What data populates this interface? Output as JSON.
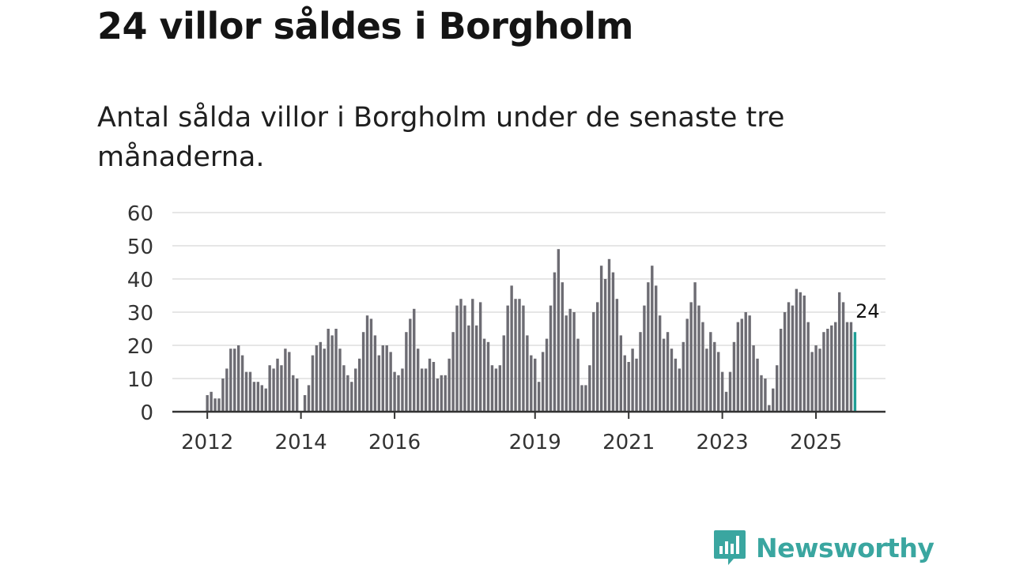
{
  "title": "24 villor såldes i Borgholm",
  "subtitle": "Antal sålda villor i Borgholm under de senaste tre månaderna.",
  "brand": {
    "name": "Newsworthy",
    "icon": "newsworthy-logo-icon",
    "color": "#3aa6a0"
  },
  "chart_data": {
    "type": "bar",
    "title": "Antal sålda villor i Borgholm under de senaste tre månaderna.",
    "xlabel": "",
    "ylabel": "",
    "ylim": [
      0,
      60
    ],
    "yticks": [
      0,
      10,
      20,
      30,
      40,
      50,
      60
    ],
    "grid": true,
    "start": {
      "year": 2012,
      "month": 1
    },
    "x_tick_labels": [
      "2012",
      "2014",
      "2016",
      "2019",
      "2021",
      "2023",
      "2025"
    ],
    "values": [
      5,
      6,
      4,
      4,
      10,
      13,
      19,
      19,
      20,
      17,
      12,
      12,
      9,
      9,
      8,
      7,
      14,
      13,
      16,
      14,
      19,
      18,
      11,
      10,
      0,
      5,
      8,
      17,
      20,
      21,
      19,
      25,
      23,
      25,
      19,
      14,
      11,
      9,
      13,
      16,
      24,
      29,
      28,
      23,
      17,
      20,
      20,
      18,
      12,
      11,
      13,
      24,
      28,
      31,
      19,
      13,
      13,
      16,
      15,
      10,
      11,
      11,
      16,
      24,
      32,
      34,
      32,
      26,
      34,
      26,
      33,
      22,
      21,
      14,
      13,
      14,
      23,
      32,
      38,
      34,
      34,
      32,
      23,
      17,
      16,
      9,
      18,
      22,
      32,
      42,
      49,
      39,
      29,
      31,
      30,
      22,
      8,
      8,
      14,
      30,
      33,
      44,
      40,
      46,
      42,
      34,
      23,
      17,
      15,
      19,
      16,
      24,
      32,
      39,
      44,
      38,
      29,
      22,
      24,
      19,
      16,
      13,
      21,
      28,
      33,
      39,
      32,
      27,
      19,
      24,
      21,
      18,
      12,
      6,
      12,
      21,
      27,
      28,
      30,
      29,
      20,
      16,
      11,
      10,
      2,
      7,
      14,
      25,
      30,
      33,
      32,
      37,
      36,
      35,
      27,
      18,
      20,
      19,
      24,
      25,
      26,
      27,
      36,
      33,
      27,
      27,
      24
    ],
    "latest_value": 24,
    "latest_label": "24",
    "bar_color": "#6d6c73",
    "highlight_color": "#1f9e95",
    "axis_color": "#333333",
    "grid_color": "#dddddd"
  }
}
